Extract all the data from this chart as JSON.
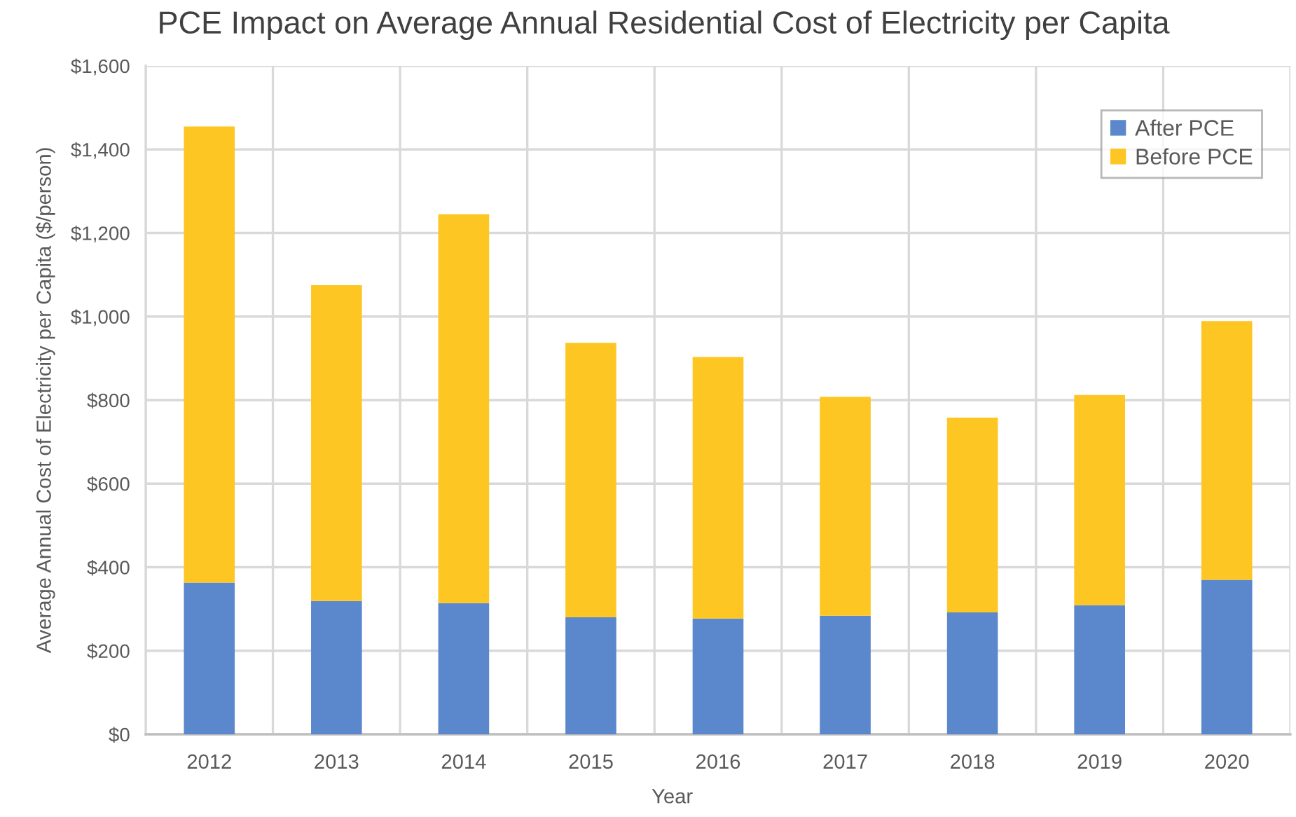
{
  "chart_data": {
    "type": "bar",
    "title": "PCE Impact on Average Annual Residential Cost of Electricity per Capita",
    "xlabel": "Year",
    "ylabel": "Average Annual Cost of Electricity per Capita ($/person)",
    "categories": [
      "2012",
      "2013",
      "2014",
      "2015",
      "2016",
      "2017",
      "2018",
      "2019",
      "2020"
    ],
    "stacked": true,
    "series": [
      {
        "name": "After PCE",
        "color": "#5b87cc",
        "values": [
          363,
          319,
          314,
          280,
          277,
          284,
          292,
          309,
          370
        ]
      },
      {
        "name": "Before PCE",
        "color": "#fec622",
        "values": [
          1092,
          756,
          931,
          657,
          626,
          524,
          466,
          503,
          619
        ]
      }
    ],
    "ylim": [
      0,
      1600
    ],
    "yticks": [
      {
        "value": 0,
        "label": "$0"
      },
      {
        "value": 200,
        "label": "$200"
      },
      {
        "value": 400,
        "label": "$400"
      },
      {
        "value": 600,
        "label": "$600"
      },
      {
        "value": 800,
        "label": "$800"
      },
      {
        "value": 1000,
        "label": "$1,000"
      },
      {
        "value": 1200,
        "label": "$1,200"
      },
      {
        "value": 1400,
        "label": "$1,400"
      },
      {
        "value": 1600,
        "label": "$1,600"
      }
    ],
    "grid": true,
    "legend": "top right"
  }
}
